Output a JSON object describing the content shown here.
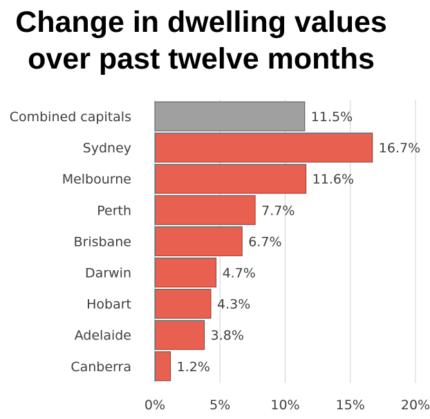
{
  "title_lines": [
    "Change in dwelling values",
    "over past twelve months"
  ],
  "chart_data": {
    "type": "bar",
    "orientation": "horizontal",
    "title": "Change in dwelling values over past twelve months",
    "categories": [
      "Combined capitals",
      "Sydney",
      "Melbourne",
      "Perth",
      "Brisbane",
      "Darwin",
      "Hobart",
      "Adelaide",
      "Canberra"
    ],
    "values": [
      11.5,
      16.7,
      11.6,
      7.7,
      6.7,
      4.7,
      4.3,
      3.8,
      1.2
    ],
    "value_labels": [
      "11.5%",
      "16.7%",
      "11.6%",
      "7.7%",
      "6.7%",
      "4.7%",
      "4.3%",
      "3.8%",
      "1.2%"
    ],
    "bar_colors": [
      "#a0a0a0",
      "#e8604f",
      "#e8604f",
      "#e8604f",
      "#e8604f",
      "#e8604f",
      "#e8604f",
      "#e8604f",
      "#e8604f"
    ],
    "xlim": [
      0,
      20
    ],
    "xticks": [
      0,
      5,
      10,
      15,
      20
    ],
    "xtick_labels": [
      "0%",
      "5%",
      "10%",
      "15%",
      "20%"
    ],
    "xlabel": "",
    "ylabel": "",
    "grid": true,
    "legend": "none"
  }
}
